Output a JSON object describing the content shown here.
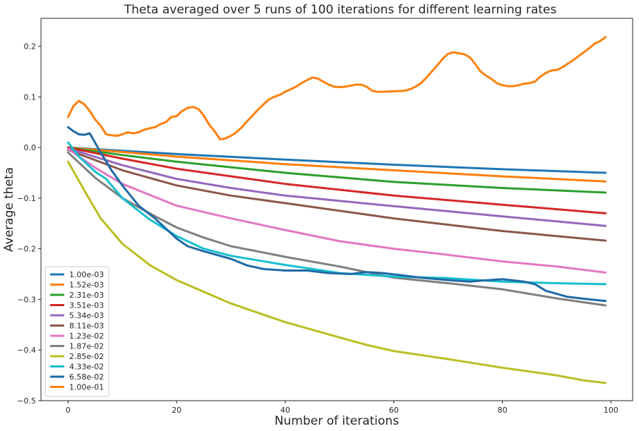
{
  "chart_data": {
    "type": "line",
    "title": "Theta averaged over 5 runs of 100 iterations for different learning rates",
    "xlabel": "Number of iterations",
    "ylabel": "Average theta",
    "xlim": [
      -5,
      104
    ],
    "ylim": [
      -0.5,
      0.255
    ],
    "xticks": [
      0,
      20,
      40,
      60,
      80,
      100
    ],
    "xtick_labels": [
      "0",
      "20",
      "40",
      "60",
      "80",
      "100"
    ],
    "yticks": [
      -0.5,
      -0.4,
      -0.3,
      -0.2,
      -0.1,
      0.0,
      0.1,
      0.2
    ],
    "ytick_labels": [
      "−0.5",
      "−0.4",
      "−0.3",
      "−0.2",
      "−0.1",
      "0.0",
      "0.1",
      "0.2"
    ],
    "grid": false,
    "legend_position": "lower-left",
    "series": [
      {
        "name": "1.00e-03",
        "color": "#1f77b4",
        "points": [
          [
            0,
            0.0
          ],
          [
            20,
            -0.013
          ],
          [
            40,
            -0.024
          ],
          [
            60,
            -0.034
          ],
          [
            80,
            -0.043
          ],
          [
            99,
            -0.05
          ]
        ]
      },
      {
        "name": "1.52e-03",
        "color": "#ff7f0e",
        "points": [
          [
            0,
            0.0
          ],
          [
            20,
            -0.018
          ],
          [
            40,
            -0.033
          ],
          [
            60,
            -0.045
          ],
          [
            80,
            -0.057
          ],
          [
            99,
            -0.067
          ]
        ]
      },
      {
        "name": "2.31e-03",
        "color": "#2ca02c",
        "points": [
          [
            0,
            0.0
          ],
          [
            10,
            -0.015
          ],
          [
            20,
            -0.028
          ],
          [
            40,
            -0.05
          ],
          [
            60,
            -0.068
          ],
          [
            80,
            -0.08
          ],
          [
            99,
            -0.089
          ]
        ]
      },
      {
        "name": "3.51e-03",
        "color": "#d62728",
        "points": [
          [
            0,
            0.0
          ],
          [
            10,
            -0.022
          ],
          [
            20,
            -0.042
          ],
          [
            40,
            -0.072
          ],
          [
            60,
            -0.095
          ],
          [
            80,
            -0.113
          ],
          [
            99,
            -0.13
          ]
        ]
      },
      {
        "name": "5.34e-03",
        "color": "#9467bd",
        "points": [
          [
            0,
            -0.002
          ],
          [
            10,
            -0.035
          ],
          [
            20,
            -0.062
          ],
          [
            30,
            -0.08
          ],
          [
            40,
            -0.095
          ],
          [
            60,
            -0.116
          ],
          [
            80,
            -0.136
          ],
          [
            99,
            -0.155
          ]
        ]
      },
      {
        "name": "8.11e-03",
        "color": "#8c564b",
        "points": [
          [
            0,
            -0.005
          ],
          [
            10,
            -0.045
          ],
          [
            20,
            -0.075
          ],
          [
            30,
            -0.095
          ],
          [
            40,
            -0.11
          ],
          [
            60,
            -0.14
          ],
          [
            80,
            -0.165
          ],
          [
            99,
            -0.184
          ]
        ]
      },
      {
        "name": "1.23e-02",
        "color": "#e377c2",
        "points": [
          [
            0,
            -0.003
          ],
          [
            5,
            -0.04
          ],
          [
            10,
            -0.072
          ],
          [
            20,
            -0.115
          ],
          [
            30,
            -0.14
          ],
          [
            40,
            -0.163
          ],
          [
            50,
            -0.185
          ],
          [
            60,
            -0.2
          ],
          [
            70,
            -0.212
          ],
          [
            80,
            -0.225
          ],
          [
            90,
            -0.235
          ],
          [
            99,
            -0.247
          ]
        ]
      },
      {
        "name": "1.87e-02",
        "color": "#7f7f7f",
        "points": [
          [
            0,
            -0.01
          ],
          [
            5,
            -0.06
          ],
          [
            10,
            -0.1
          ],
          [
            15,
            -0.13
          ],
          [
            20,
            -0.158
          ],
          [
            25,
            -0.178
          ],
          [
            30,
            -0.195
          ],
          [
            40,
            -0.216
          ],
          [
            50,
            -0.235
          ],
          [
            60,
            -0.257
          ],
          [
            70,
            -0.268
          ],
          [
            80,
            -0.28
          ],
          [
            90,
            -0.298
          ],
          [
            99,
            -0.312
          ]
        ]
      },
      {
        "name": "2.85e-02",
        "color": "#bcbd22",
        "points": [
          [
            0,
            -0.028
          ],
          [
            3,
            -0.085
          ],
          [
            6,
            -0.14
          ],
          [
            10,
            -0.19
          ],
          [
            15,
            -0.232
          ],
          [
            20,
            -0.262
          ],
          [
            30,
            -0.308
          ],
          [
            40,
            -0.345
          ],
          [
            50,
            -0.375
          ],
          [
            55,
            -0.39
          ],
          [
            60,
            -0.402
          ],
          [
            70,
            -0.418
          ],
          [
            80,
            -0.435
          ],
          [
            90,
            -0.45
          ],
          [
            95,
            -0.46
          ],
          [
            99,
            -0.465
          ]
        ]
      },
      {
        "name": "4.33e-02",
        "color": "#17becf",
        "points": [
          [
            0,
            0.01
          ],
          [
            2,
            -0.018
          ],
          [
            5,
            -0.048
          ],
          [
            7,
            -0.062
          ],
          [
            10,
            -0.1
          ],
          [
            15,
            -0.142
          ],
          [
            20,
            -0.175
          ],
          [
            25,
            -0.2
          ],
          [
            30,
            -0.214
          ],
          [
            40,
            -0.232
          ],
          [
            50,
            -0.248
          ],
          [
            60,
            -0.255
          ],
          [
            70,
            -0.258
          ],
          [
            80,
            -0.265
          ],
          [
            90,
            -0.268
          ],
          [
            99,
            -0.27
          ]
        ]
      },
      {
        "name": "6.58e-02",
        "color": "#1f6aa5",
        "points": [
          [
            0,
            0.04
          ],
          [
            1,
            0.032
          ],
          [
            2,
            0.026
          ],
          [
            3,
            0.025
          ],
          [
            4,
            0.028
          ],
          [
            6,
            -0.01
          ],
          [
            8,
            -0.045
          ],
          [
            10,
            -0.075
          ],
          [
            13,
            -0.115
          ],
          [
            16,
            -0.14
          ],
          [
            18,
            -0.16
          ],
          [
            20,
            -0.18
          ],
          [
            22,
            -0.195
          ],
          [
            25,
            -0.205
          ],
          [
            30,
            -0.22
          ],
          [
            33,
            -0.233
          ],
          [
            36,
            -0.24
          ],
          [
            40,
            -0.243
          ],
          [
            44,
            -0.243
          ],
          [
            48,
            -0.248
          ],
          [
            52,
            -0.25
          ],
          [
            55,
            -0.246
          ],
          [
            58,
            -0.248
          ],
          [
            62,
            -0.253
          ],
          [
            65,
            -0.257
          ],
          [
            70,
            -0.262
          ],
          [
            74,
            -0.265
          ],
          [
            76,
            -0.263
          ],
          [
            80,
            -0.26
          ],
          [
            84,
            -0.265
          ],
          [
            86,
            -0.27
          ],
          [
            88,
            -0.283
          ],
          [
            92,
            -0.295
          ],
          [
            96,
            -0.3
          ],
          [
            99,
            -0.303
          ]
        ]
      },
      {
        "name": "1.00e-01",
        "color": "#ff7f0e",
        "points": [
          [
            0,
            0.06
          ],
          [
            1,
            0.082
          ],
          [
            2,
            0.092
          ],
          [
            3,
            0.085
          ],
          [
            4,
            0.072
          ],
          [
            5,
            0.055
          ],
          [
            6,
            0.043
          ],
          [
            7,
            0.026
          ],
          [
            8,
            0.024
          ],
          [
            9,
            0.023
          ],
          [
            10,
            0.026
          ],
          [
            11,
            0.03
          ],
          [
            12,
            0.028
          ],
          [
            13,
            0.03
          ],
          [
            14,
            0.035
          ],
          [
            15,
            0.038
          ],
          [
            16,
            0.04
          ],
          [
            17,
            0.046
          ],
          [
            18,
            0.05
          ],
          [
            19,
            0.06
          ],
          [
            20,
            0.062
          ],
          [
            21,
            0.072
          ],
          [
            22,
            0.078
          ],
          [
            23,
            0.08
          ],
          [
            24,
            0.076
          ],
          [
            25,
            0.063
          ],
          [
            26,
            0.045
          ],
          [
            27,
            0.032
          ],
          [
            28,
            0.016
          ],
          [
            29,
            0.018
          ],
          [
            30,
            0.023
          ],
          [
            31,
            0.03
          ],
          [
            32,
            0.04
          ],
          [
            33,
            0.052
          ],
          [
            34,
            0.063
          ],
          [
            35,
            0.075
          ],
          [
            36,
            0.085
          ],
          [
            37,
            0.095
          ],
          [
            38,
            0.1
          ],
          [
            39,
            0.104
          ],
          [
            40,
            0.11
          ],
          [
            41,
            0.115
          ],
          [
            42,
            0.12
          ],
          [
            43,
            0.127
          ],
          [
            44,
            0.133
          ],
          [
            45,
            0.138
          ],
          [
            46,
            0.136
          ],
          [
            47,
            0.13
          ],
          [
            48,
            0.124
          ],
          [
            49,
            0.12
          ],
          [
            50,
            0.119
          ],
          [
            51,
            0.12
          ],
          [
            52,
            0.122
          ],
          [
            53,
            0.124
          ],
          [
            54,
            0.124
          ],
          [
            55,
            0.12
          ],
          [
            56,
            0.112
          ],
          [
            57,
            0.11
          ],
          [
            58,
            0.11
          ],
          [
            60,
            0.111
          ],
          [
            62,
            0.112
          ],
          [
            63,
            0.115
          ],
          [
            64,
            0.12
          ],
          [
            65,
            0.127
          ],
          [
            66,
            0.138
          ],
          [
            67,
            0.15
          ],
          [
            68,
            0.162
          ],
          [
            69,
            0.175
          ],
          [
            70,
            0.185
          ],
          [
            71,
            0.188
          ],
          [
            72,
            0.186
          ],
          [
            73,
            0.184
          ],
          [
            74,
            0.178
          ],
          [
            75,
            0.165
          ],
          [
            76,
            0.15
          ],
          [
            77,
            0.142
          ],
          [
            78,
            0.135
          ],
          [
            79,
            0.127
          ],
          [
            80,
            0.123
          ],
          [
            81,
            0.121
          ],
          [
            82,
            0.121
          ],
          [
            83,
            0.123
          ],
          [
            84,
            0.126
          ],
          [
            85,
            0.127
          ],
          [
            86,
            0.13
          ],
          [
            87,
            0.14
          ],
          [
            88,
            0.147
          ],
          [
            89,
            0.152
          ],
          [
            90,
            0.153
          ],
          [
            91,
            0.158
          ],
          [
            92,
            0.165
          ],
          [
            93,
            0.172
          ],
          [
            94,
            0.18
          ],
          [
            95,
            0.188
          ],
          [
            96,
            0.196
          ],
          [
            97,
            0.205
          ],
          [
            98,
            0.21
          ],
          [
            99,
            0.218
          ]
        ]
      }
    ]
  }
}
